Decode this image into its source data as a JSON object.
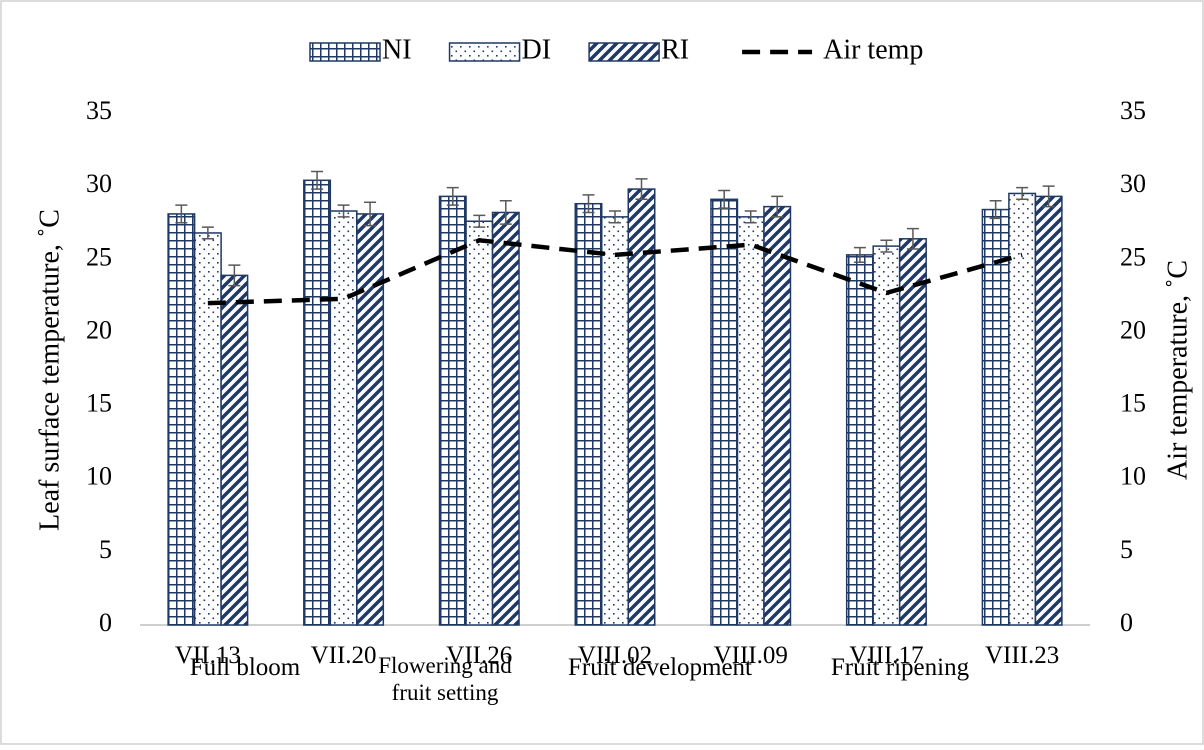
{
  "chart_data": {
    "type": "bar",
    "y_label": "Leaf surface temperature, ˚C",
    "y2_label": "Air temperature, ˚C",
    "categories": [
      "VII.13",
      "VII.20",
      "VII.26",
      "VIII.02",
      "VIII.09",
      "VIII.17",
      "VIII.23"
    ],
    "series": [
      {
        "name": "NI",
        "type": "bar",
        "pattern": "grid",
        "color": "#1f3864",
        "values": [
          28.1,
          30.4,
          29.3,
          28.8,
          29.1,
          25.3,
          28.4
        ],
        "errors": [
          0.6,
          0.6,
          0.6,
          0.6,
          0.6,
          0.5,
          0.6
        ]
      },
      {
        "name": "DI",
        "type": "bar",
        "pattern": "dots",
        "color": "#1f3864",
        "values": [
          26.8,
          28.3,
          27.6,
          27.9,
          27.9,
          25.9,
          29.5
        ],
        "errors": [
          0.4,
          0.4,
          0.4,
          0.4,
          0.4,
          0.4,
          0.4
        ]
      },
      {
        "name": "RI",
        "type": "bar",
        "pattern": "diagonal",
        "color": "#1f3864",
        "values": [
          23.9,
          28.1,
          28.2,
          29.8,
          28.6,
          26.4,
          29.3
        ],
        "errors": [
          0.7,
          0.8,
          0.8,
          0.7,
          0.7,
          0.7,
          0.7
        ]
      },
      {
        "name": "Air temp",
        "type": "line",
        "axis": "y2",
        "dash": true,
        "color": "#000000",
        "values": [
          22.0,
          22.3,
          26.3,
          25.3,
          26.0,
          22.7,
          25.3
        ]
      }
    ],
    "ylim": [
      0,
      35
    ],
    "yticks": [
      0,
      5,
      10,
      15,
      20,
      25,
      30,
      35
    ],
    "y2lim": [
      0,
      35
    ],
    "y2ticks": [
      0,
      5,
      10,
      15,
      20,
      25,
      30,
      35
    ],
    "grid": false,
    "legend": "top",
    "annotations": [
      [
        "Full bloom"
      ],
      [
        "Flowering and",
        "fruit setting"
      ],
      [
        "Fruit development"
      ],
      [
        "Fruit ripening"
      ]
    ]
  }
}
